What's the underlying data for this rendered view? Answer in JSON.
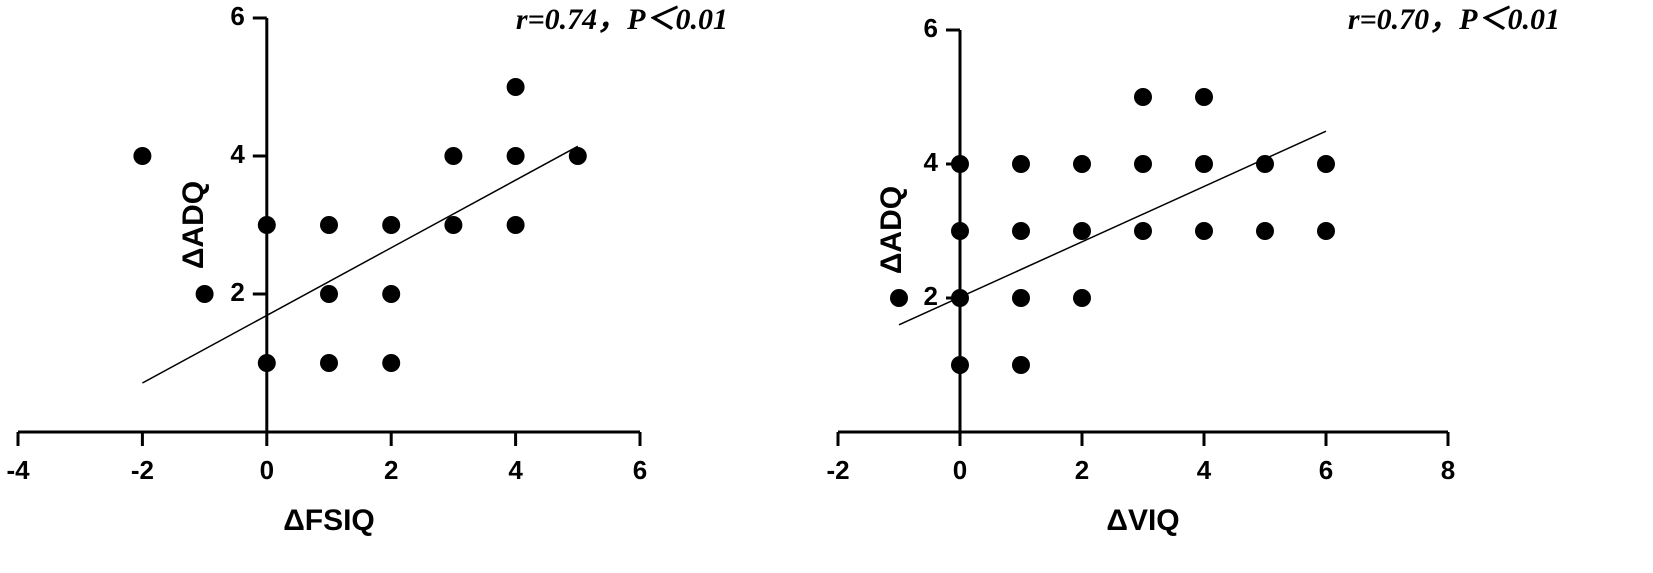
{
  "chart_data": [
    {
      "type": "scatter",
      "annotation": "r=0.74，P＜0.01",
      "x_label": "ΔFSIQ",
      "y_label": "ΔADQ",
      "color": "#000000",
      "x": [
        -2,
        -1,
        0,
        0,
        1,
        1,
        1,
        2,
        2,
        2,
        3,
        3,
        4,
        4,
        4,
        5
      ],
      "values": [
        4,
        2,
        3,
        1,
        3,
        2,
        1,
        3,
        2,
        1,
        4,
        3,
        5,
        4,
        3,
        4
      ],
      "trendline": {
        "x": [
          -2,
          5
        ],
        "y": [
          0.71,
          4.14
        ]
      },
      "xlim": [
        -4,
        6
      ],
      "xticks": [
        -4,
        -2,
        0,
        2,
        4,
        6
      ],
      "ylim": [
        0,
        6
      ],
      "yticks": [
        2,
        4,
        6
      ]
    },
    {
      "type": "scatter",
      "annotation": "r=0.70，P＜0.01",
      "x_label": "ΔVIQ",
      "y_label": "ΔADQ",
      "color": "#000000",
      "x": [
        -1,
        0,
        0,
        0,
        0,
        1,
        1,
        1,
        1,
        2,
        2,
        2,
        3,
        3,
        3,
        4,
        4,
        4,
        5,
        5,
        6,
        6
      ],
      "values": [
        2,
        4,
        3,
        2,
        1,
        4,
        3,
        2,
        1,
        4,
        3,
        2,
        5,
        4,
        3,
        5,
        4,
        3,
        4,
        3,
        4,
        3
      ],
      "trendline": {
        "x": [
          -1,
          6
        ],
        "y": [
          1.6,
          4.49
        ]
      },
      "xlim": [
        -2,
        8
      ],
      "xticks": [
        -2,
        0,
        2,
        4,
        6,
        8
      ],
      "ylim": [
        0,
        6
      ],
      "yticks": [
        2,
        4,
        6
      ]
    }
  ]
}
